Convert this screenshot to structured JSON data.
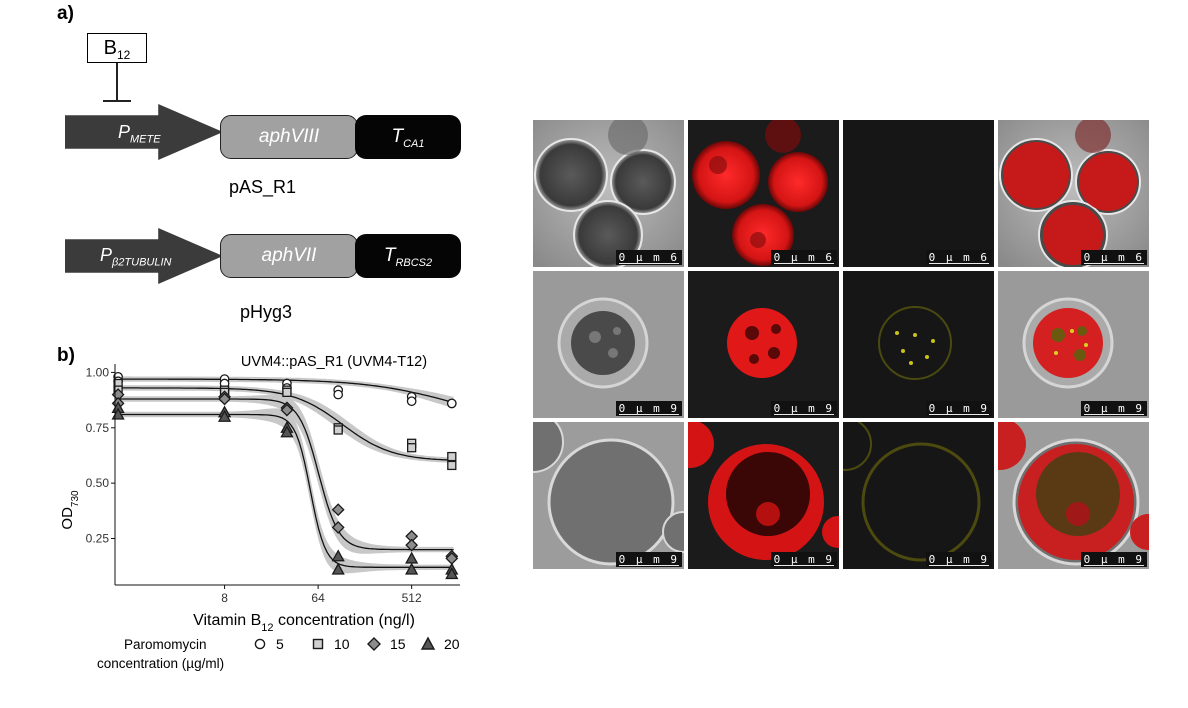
{
  "panel_a": {
    "label": "a)",
    "b12_box": {
      "main": "B",
      "sub": "12"
    },
    "construct1": {
      "promoter": {
        "main": "P",
        "sub": "METE"
      },
      "gene": "aphVIII",
      "terminator": {
        "main": "T",
        "sub": "CA1"
      },
      "name": "pAS_R1"
    },
    "construct2": {
      "promoter": {
        "main": "P",
        "sub": "β2TUBULIN"
      },
      "gene": "aphVII",
      "terminator": {
        "main": "T",
        "sub": "RBCS2"
      },
      "name": "pHyg3"
    },
    "colors": {
      "promoter": "#3b3b3b",
      "gene": "#a1a1a1",
      "terminator": "#050505"
    }
  },
  "panel_b": {
    "label": "b)",
    "legend": {
      "title_line1": "Paromomycin",
      "title_line2": "concentration (µg/ml)",
      "entries": [
        {
          "label": "5",
          "shape": "circle",
          "fill": "#ffffff"
        },
        {
          "label": "10",
          "shape": "square",
          "fill": "#d0d0d0"
        },
        {
          "label": "15",
          "shape": "diamond",
          "fill": "#8c8c8c"
        },
        {
          "label": "20",
          "shape": "triangle",
          "fill": "#555555"
        }
      ]
    }
  },
  "chart_data": {
    "type": "scatter",
    "title": "UVM4::pAS_R1 (UVM4-T12)",
    "xlabel": {
      "main": "Vitamin B",
      "sub": "12",
      "rest": " concentration (ng/l)"
    },
    "ylabel": {
      "main": "OD",
      "sub": "730"
    },
    "x_scale": "log2",
    "xlim": [
      0.7,
      1500
    ],
    "ylim": [
      0.04,
      1.02
    ],
    "x_ticks": [
      8,
      64,
      512
    ],
    "y_ticks": [
      0.25,
      0.5,
      0.75,
      1.0
    ],
    "y_tick_labels": [
      "0.25",
      "0.50",
      "0.75",
      "1.00"
    ],
    "grid": false,
    "confidence_band": true,
    "series": [
      {
        "name": "5",
        "x": [
          0.75,
          0.75,
          8,
          8,
          32,
          32,
          100,
          100,
          512,
          512,
          1250,
          1250
        ],
        "y": [
          0.98,
          0.96,
          0.97,
          0.95,
          0.95,
          0.93,
          0.92,
          0.9,
          0.89,
          0.87,
          0.86,
          0.86
        ],
        "fit": {
          "top": 0.97,
          "bottom": 0.75,
          "ec50": 1400,
          "hill": 1.0
        }
      },
      {
        "name": "10",
        "x": [
          0.75,
          0.75,
          8,
          8,
          32,
          32,
          100,
          100,
          512,
          512,
          1250,
          1250
        ],
        "y": [
          0.95,
          0.92,
          0.92,
          0.91,
          0.92,
          0.91,
          0.75,
          0.74,
          0.68,
          0.66,
          0.62,
          0.58
        ],
        "fit": {
          "top": 0.93,
          "bottom": 0.6,
          "ec50": 110,
          "hill": 1.8
        }
      },
      {
        "name": "15",
        "x": [
          0.75,
          0.75,
          8,
          8,
          32,
          32,
          100,
          100,
          512,
          512,
          1250,
          1250
        ],
        "y": [
          0.9,
          0.86,
          0.89,
          0.88,
          0.84,
          0.83,
          0.38,
          0.3,
          0.26,
          0.22,
          0.17,
          0.16
        ],
        "fit": {
          "top": 0.88,
          "bottom": 0.2,
          "ec50": 65,
          "hill": 4.5
        }
      },
      {
        "name": "20",
        "x": [
          0.75,
          0.75,
          8,
          8,
          32,
          32,
          100,
          100,
          512,
          512,
          1250,
          1250
        ],
        "y": [
          0.84,
          0.81,
          0.82,
          0.8,
          0.75,
          0.73,
          0.17,
          0.11,
          0.16,
          0.11,
          0.11,
          0.09
        ],
        "fit": {
          "top": 0.81,
          "bottom": 0.12,
          "ec50": 54,
          "hill": 6.0
        }
      }
    ]
  },
  "microscopy": {
    "rows": [
      {
        "scale": "0 µ m 6"
      },
      {
        "scale": "0 µ m 9"
      },
      {
        "scale": "0 µ m 9"
      }
    ]
  }
}
